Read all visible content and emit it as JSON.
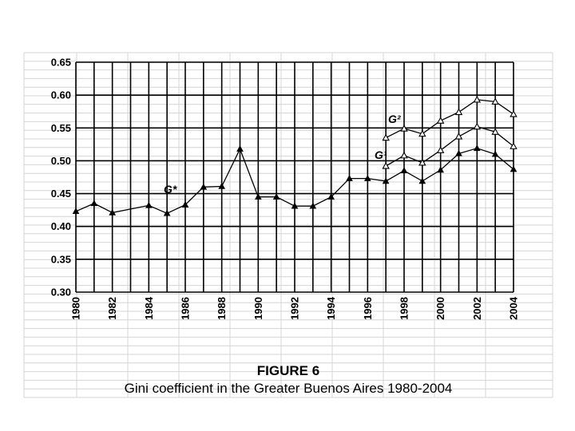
{
  "figure": {
    "label": "FIGURE 6",
    "title": "Gini coefficient in the Greater Buenos Aires 1980-2004"
  },
  "chart_data": {
    "type": "line",
    "title": "Gini coefficient in the Greater Buenos Aires 1980-2004",
    "xlabel": "",
    "ylabel": "",
    "xlim": [
      1980,
      2004
    ],
    "ylim": [
      0.3,
      0.65
    ],
    "grid": true,
    "legend": "inline labels",
    "x_ticks": [
      "1980",
      "1982",
      "1984",
      "1986",
      "1988",
      "1990",
      "1992",
      "1994",
      "1996",
      "1998",
      "2000",
      "2002",
      "2004"
    ],
    "y_ticks": [
      "0.30",
      "0.35",
      "0.40",
      "0.45",
      "0.50",
      "0.55",
      "0.60",
      "0.65"
    ],
    "series": [
      {
        "name": "G*",
        "marker": "filled-triangle",
        "x": [
          1980,
          1981,
          1982,
          1984,
          1985,
          1986,
          1987,
          1988,
          1989,
          1990,
          1991,
          1992,
          1993,
          1994,
          1995,
          1996,
          1997,
          1998,
          1999,
          2000,
          2001,
          2002,
          2003,
          2004
        ],
        "values": [
          0.423,
          0.435,
          0.421,
          0.432,
          0.42,
          0.433,
          0.46,
          0.461,
          0.518,
          0.445,
          0.445,
          0.431,
          0.431,
          0.445,
          0.473,
          0.473,
          0.469,
          0.485,
          0.469,
          0.486,
          0.511,
          0.519,
          0.51,
          0.487
        ]
      },
      {
        "name": "G¹",
        "marker": "open-triangle",
        "x": [
          1997,
          1998,
          1999,
          2000,
          2001,
          2002,
          2003,
          2004
        ],
        "values": [
          0.492,
          0.508,
          0.497,
          0.516,
          0.537,
          0.552,
          0.544,
          0.522
        ]
      },
      {
        "name": "G²",
        "marker": "open-triangle",
        "x": [
          1997,
          1998,
          1999,
          2000,
          2001,
          2002,
          2003,
          2004
        ],
        "values": [
          0.535,
          0.549,
          0.541,
          0.561,
          0.574,
          0.593,
          0.59,
          0.571
        ]
      }
    ],
    "annotations": [
      {
        "text": "G*",
        "series": "G*"
      },
      {
        "text": "G¹",
        "series": "G¹"
      },
      {
        "text": "G²",
        "series": "G²"
      }
    ]
  }
}
